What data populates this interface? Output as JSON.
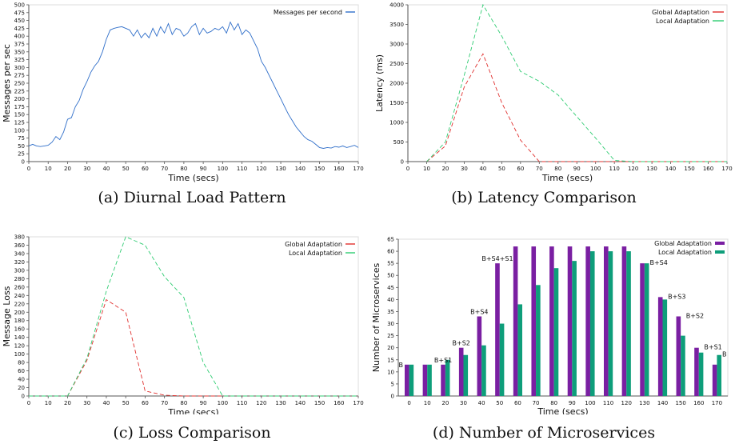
{
  "colors": {
    "blue": "#2f6ec9",
    "red": "#e0302e",
    "green": "#2fcc72",
    "purple": "#7a1fa2",
    "teal": "#0e9e7a",
    "grid": "#dcdcdc",
    "axis": "#555555"
  },
  "panels": {
    "a": {
      "caption": "(a) Diurnal Load Pattern",
      "chart_data": {
        "type": "line",
        "xlabel": "Time (secs)",
        "ylabel": "Messages per sec",
        "xlim": [
          0,
          170
        ],
        "ylim": [
          0,
          500
        ],
        "xticks": [
          0,
          10,
          20,
          30,
          40,
          50,
          60,
          70,
          80,
          90,
          100,
          110,
          120,
          130,
          140,
          150,
          160,
          170
        ],
        "yticks": [
          0,
          25,
          50,
          75,
          100,
          125,
          150,
          175,
          200,
          225,
          250,
          275,
          300,
          325,
          350,
          375,
          400,
          425,
          450,
          475,
          500
        ],
        "legend_position": "top-right",
        "series": [
          {
            "name": "Messages per second",
            "color": "blue",
            "x": [
              0,
              2,
              4,
              6,
              8,
              10,
              12,
              14,
              16,
              18,
              20,
              22,
              24,
              26,
              28,
              30,
              32,
              34,
              36,
              38,
              40,
              42,
              44,
              46,
              48,
              50,
              52,
              54,
              56,
              58,
              60,
              62,
              64,
              66,
              68,
              70,
              72,
              74,
              76,
              78,
              80,
              82,
              84,
              86,
              88,
              90,
              92,
              94,
              96,
              98,
              100,
              102,
              104,
              106,
              108,
              110,
              112,
              114,
              116,
              118,
              120,
              122,
              124,
              126,
              128,
              130,
              132,
              134,
              136,
              138,
              140,
              142,
              144,
              146,
              148,
              150,
              152,
              154,
              156,
              158,
              160,
              162,
              164,
              166,
              168,
              170
            ],
            "y": [
              50,
              55,
              50,
              48,
              50,
              52,
              62,
              80,
              70,
              95,
              135,
              140,
              175,
              195,
              230,
              255,
              285,
              305,
              320,
              350,
              390,
              420,
              425,
              428,
              430,
              425,
              420,
              400,
              420,
              395,
              410,
              395,
              425,
              400,
              430,
              410,
              440,
              405,
              425,
              420,
              400,
              410,
              430,
              440,
              405,
              425,
              410,
              415,
              425,
              420,
              430,
              410,
              445,
              420,
              440,
              405,
              420,
              410,
              385,
              360,
              320,
              300,
              275,
              250,
              225,
              200,
              175,
              150,
              130,
              110,
              95,
              80,
              70,
              65,
              55,
              45,
              42,
              45,
              43,
              48,
              46,
              50,
              45,
              48,
              52,
              45
            ]
          }
        ]
      }
    },
    "b": {
      "caption": "(b) Latency Comparison",
      "chart_data": {
        "type": "line",
        "xlabel": "Time (secs)",
        "ylabel": "Latency (ms)",
        "xlim": [
          0,
          170
        ],
        "ylim": [
          0,
          4000
        ],
        "xticks": [
          0,
          10,
          20,
          30,
          40,
          50,
          60,
          70,
          80,
          90,
          100,
          110,
          120,
          130,
          140,
          150,
          160,
          170
        ],
        "yticks": [
          0,
          500,
          1000,
          1500,
          2000,
          2500,
          3000,
          3500,
          4000
        ],
        "legend_position": "top-right",
        "series": [
          {
            "name": "Global Adaptation",
            "color": "red",
            "dashed": true,
            "x": [
              10,
              20,
              30,
              40,
              50,
              60,
              70,
              80,
              90,
              100,
              110,
              120,
              130,
              140,
              150,
              160,
              170
            ],
            "y": [
              0,
              400,
              1900,
              2750,
              1500,
              550,
              0,
              0,
              0,
              0,
              0,
              0,
              0,
              0,
              0,
              0,
              0
            ]
          },
          {
            "name": "Local Adaptation",
            "color": "green",
            "dashed": true,
            "x": [
              10,
              20,
              30,
              40,
              50,
              60,
              70,
              80,
              90,
              100,
              110,
              120,
              130,
              140,
              150,
              160,
              170
            ],
            "y": [
              0,
              500,
              2200,
              4000,
              3200,
              2300,
              2050,
              1700,
              1150,
              600,
              30,
              0,
              0,
              0,
              0,
              0,
              0
            ]
          }
        ]
      }
    },
    "c": {
      "caption": "(c) Loss Comparison",
      "chart_data": {
        "type": "line",
        "xlabel": "Time (secs)",
        "ylabel": "Message Loss",
        "xlim": [
          0,
          170
        ],
        "ylim": [
          0,
          380
        ],
        "xticks": [
          0,
          10,
          20,
          30,
          40,
          50,
          60,
          70,
          80,
          90,
          100,
          110,
          120,
          130,
          140,
          150,
          160,
          170
        ],
        "yticks": [
          0,
          20,
          40,
          60,
          80,
          100,
          120,
          140,
          160,
          180,
          200,
          220,
          240,
          260,
          280,
          300,
          320,
          340,
          360,
          380
        ],
        "legend_position": "top-right",
        "series": [
          {
            "name": "Global Adaptation",
            "color": "red",
            "dashed": true,
            "x": [
              0,
              10,
              20,
              30,
              40,
              50,
              60,
              70,
              80,
              90,
              100,
              110,
              120,
              130,
              140,
              150,
              160,
              170
            ],
            "y": [
              0,
              0,
              0,
              85,
              230,
              200,
              12,
              2,
              0,
              0,
              0,
              0,
              0,
              0,
              0,
              0,
              0,
              0
            ]
          },
          {
            "name": "Local Adaptation",
            "color": "green",
            "dashed": true,
            "x": [
              0,
              10,
              20,
              30,
              40,
              50,
              60,
              70,
              80,
              90,
              100,
              110,
              120,
              130,
              140,
              150,
              160,
              170
            ],
            "y": [
              0,
              0,
              0,
              90,
              250,
              380,
              360,
              285,
              235,
              80,
              0,
              0,
              0,
              0,
              0,
              0,
              0,
              0
            ]
          }
        ]
      }
    },
    "d": {
      "caption": "(d) Number of Microservices",
      "chart_data": {
        "type": "bar",
        "xlabel": "Time (secs)",
        "ylabel": "Number of Microservices",
        "ylim": [
          0,
          65
        ],
        "yticks": [
          0,
          5,
          10,
          15,
          20,
          25,
          30,
          35,
          40,
          45,
          50,
          55,
          60,
          65
        ],
        "categories": [
          "0",
          "10",
          "20",
          "30",
          "40",
          "50",
          "60",
          "70",
          "80",
          "90",
          "100",
          "110",
          "120",
          "130",
          "140",
          "150",
          "160",
          "170"
        ],
        "legend_position": "top-right",
        "series": [
          {
            "name": "Global Adaptation",
            "color": "purple",
            "values": [
              13,
              13,
              13,
              20,
              33,
              55,
              62,
              62,
              62,
              62,
              62,
              62,
              62,
              55,
              41,
              33,
              20,
              13
            ]
          },
          {
            "name": "Local Adaptation",
            "color": "teal",
            "values": [
              13,
              13,
              15,
              17,
              21,
              30,
              38,
              46,
              53,
              56,
              60,
              60,
              60,
              55,
              40,
              25,
              18,
              17
            ]
          }
        ],
        "annotations": [
          {
            "category": "0",
            "text": "B",
            "side": "left"
          },
          {
            "category": "20",
            "text": "B+S1",
            "side": "top"
          },
          {
            "category": "30",
            "text": "B+S2",
            "side": "top"
          },
          {
            "category": "40",
            "text": "B+S4",
            "side": "top"
          },
          {
            "category": "50",
            "text": "B+S4+S1",
            "side": "top"
          },
          {
            "category": "130",
            "text": "B+S4",
            "side": "right"
          },
          {
            "category": "140",
            "text": "B+S3",
            "side": "right"
          },
          {
            "category": "150",
            "text": "B+S2",
            "side": "right"
          },
          {
            "category": "160",
            "text": "B+S1",
            "side": "right"
          },
          {
            "category": "170",
            "text": "B",
            "side": "right"
          }
        ]
      }
    }
  }
}
